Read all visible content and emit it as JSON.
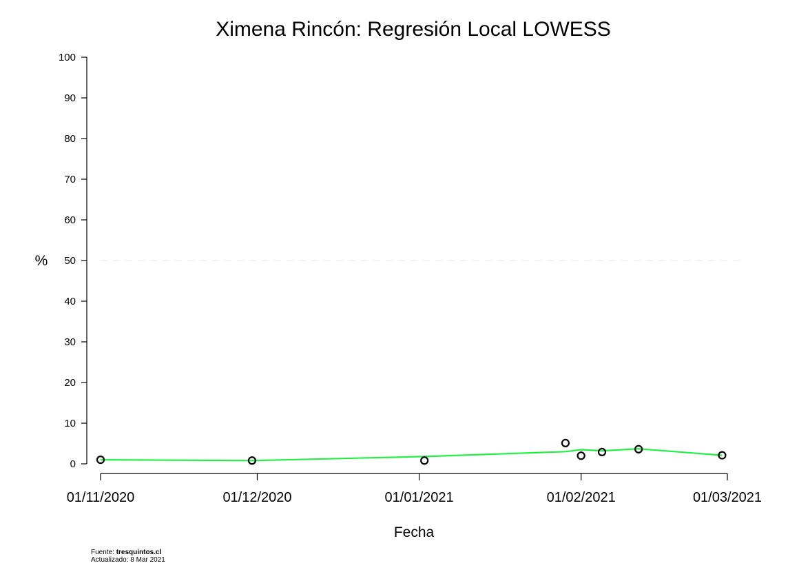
{
  "chart_data": {
    "type": "scatter",
    "title": "Ximena Rincón: Regresión Local LOWESS",
    "xlabel": "Fecha",
    "ylabel": "%",
    "ylim": [
      0,
      100
    ],
    "yticks": [
      0,
      10,
      20,
      30,
      40,
      50,
      60,
      70,
      80,
      90,
      100
    ],
    "xlim": [
      "2020-11-01",
      "2021-03-01"
    ],
    "xticks": [
      "01/11/2020",
      "01/12/2020",
      "01/01/2021",
      "01/02/2021",
      "01/03/2021"
    ],
    "reference_line": {
      "y": 50,
      "style": "dashed",
      "color": "#e6e6e6"
    },
    "points": [
      {
        "date": "2020-11-01",
        "value": 1.0
      },
      {
        "date": "2020-11-30",
        "value": 0.8
      },
      {
        "date": "2021-01-02",
        "value": 0.8
      },
      {
        "date": "2021-01-29",
        "value": 5.1
      },
      {
        "date": "2021-02-01",
        "value": 2.0
      },
      {
        "date": "2021-02-05",
        "value": 2.9
      },
      {
        "date": "2021-02-12",
        "value": 3.6
      },
      {
        "date": "2021-02-28",
        "value": 2.1
      }
    ],
    "series": [
      {
        "name": "LOWESS",
        "color": "#22ee44",
        "points": [
          {
            "date": "2020-11-01",
            "value": 1.0
          },
          {
            "date": "2020-11-30",
            "value": 0.8
          },
          {
            "date": "2021-01-02",
            "value": 1.8
          },
          {
            "date": "2021-01-29",
            "value": 3.0
          },
          {
            "date": "2021-02-01",
            "value": 3.5
          },
          {
            "date": "2021-02-05",
            "value": 3.2
          },
          {
            "date": "2021-02-12",
            "value": 3.7
          },
          {
            "date": "2021-02-28",
            "value": 2.1
          }
        ]
      }
    ],
    "grid": false
  },
  "footer": {
    "source_prefix": "Fuente: ",
    "source_name": "tresquintos.cl",
    "updated": "Actualizado: 8 Mar 2021"
  }
}
